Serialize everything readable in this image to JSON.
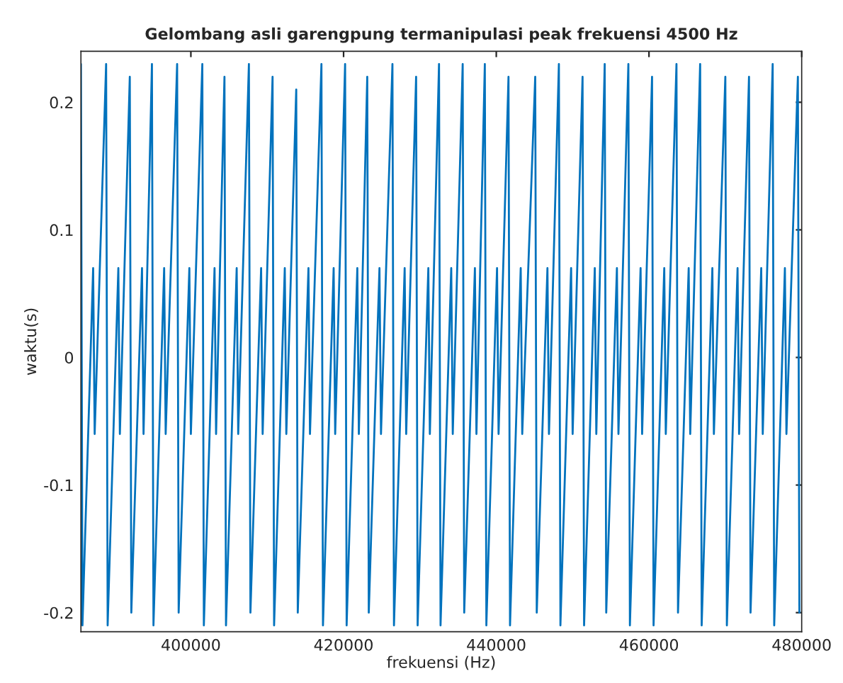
{
  "chart_data": {
    "type": "line",
    "title": "Gelombang asli garengpung termanipulasi peak frekuensi 4500 Hz",
    "xlabel": "frekuensi (Hz)",
    "ylabel": "waktu(s)",
    "xlim": [
      385600,
      480000
    ],
    "xticks": [
      400000,
      420000,
      440000,
      460000,
      480000
    ],
    "ylim": [
      -0.215,
      0.24
    ],
    "yticks": [
      -0.2,
      -0.1,
      0,
      0.1,
      0.2
    ],
    "grid": false,
    "legend": false,
    "series": [
      {
        "color": "#0072bd",
        "x": [
          385600,
          385800,
          387200,
          387400,
          388900,
          389100,
          390500,
          390700,
          392000,
          392200,
          393600,
          393800,
          394900,
          395100,
          396500,
          396700,
          398200,
          398400,
          399800,
          400000,
          401500,
          401700,
          403100,
          403300,
          404400,
          404600,
          406000,
          406200,
          407600,
          407800,
          409200,
          409400,
          410700,
          410900,
          412300,
          412500,
          413800,
          414000,
          415400,
          415600,
          417100,
          417300,
          418700,
          418900,
          420200,
          420400,
          421800,
          422000,
          423100,
          423300,
          424700,
          424900,
          426400,
          426600,
          428000,
          428200,
          429500,
          429700,
          431100,
          431300,
          432500,
          432700,
          434100,
          434300,
          435600,
          435800,
          437200,
          437400,
          438500,
          438700,
          440100,
          440300,
          441600,
          441800,
          443200,
          443400,
          445100,
          445300,
          446700,
          446900,
          448200,
          448400,
          449800,
          450000,
          451300,
          451500,
          452900,
          453100,
          454200,
          454400,
          455800,
          456000,
          457300,
          457500,
          458900,
          459100,
          460400,
          460600,
          462000,
          462200,
          463600,
          463800,
          465200,
          465400,
          466700,
          466900,
          468300,
          468500,
          470000,
          470200,
          471600,
          471800,
          473100,
          473300,
          474700,
          474900,
          476200,
          476400,
          477800,
          478000,
          479500,
          479700
        ],
        "values": [
          0.23,
          -0.21,
          0.07,
          -0.06,
          0.23,
          -0.21,
          0.07,
          -0.06,
          0.22,
          -0.2,
          0.07,
          -0.06,
          0.23,
          -0.21,
          0.07,
          -0.06,
          0.23,
          -0.2,
          0.07,
          -0.06,
          0.23,
          -0.21,
          0.07,
          -0.06,
          0.22,
          -0.21,
          0.07,
          -0.06,
          0.23,
          -0.2,
          0.07,
          -0.06,
          0.22,
          -0.21,
          0.07,
          -0.06,
          0.21,
          -0.2,
          0.07,
          -0.06,
          0.23,
          -0.21,
          0.07,
          -0.06,
          0.23,
          -0.21,
          0.07,
          -0.06,
          0.22,
          -0.2,
          0.07,
          -0.06,
          0.23,
          -0.21,
          0.07,
          -0.06,
          0.22,
          -0.21,
          0.07,
          -0.06,
          0.23,
          -0.21,
          0.07,
          -0.06,
          0.23,
          -0.2,
          0.07,
          -0.06,
          0.23,
          -0.21,
          0.07,
          -0.06,
          0.22,
          -0.21,
          0.07,
          -0.06,
          0.22,
          -0.2,
          0.07,
          -0.06,
          0.23,
          -0.21,
          0.07,
          -0.06,
          0.22,
          -0.21,
          0.07,
          -0.06,
          0.23,
          -0.2,
          0.07,
          -0.06,
          0.23,
          -0.21,
          0.07,
          -0.06,
          0.22,
          -0.21,
          0.07,
          -0.06,
          0.23,
          -0.2,
          0.07,
          -0.06,
          0.23,
          -0.21,
          0.07,
          -0.06,
          0.22,
          -0.21,
          0.07,
          -0.06,
          0.22,
          -0.2,
          0.07,
          -0.06,
          0.23,
          -0.21,
          0.07,
          -0.06,
          0.22,
          -0.2
        ]
      }
    ]
  }
}
